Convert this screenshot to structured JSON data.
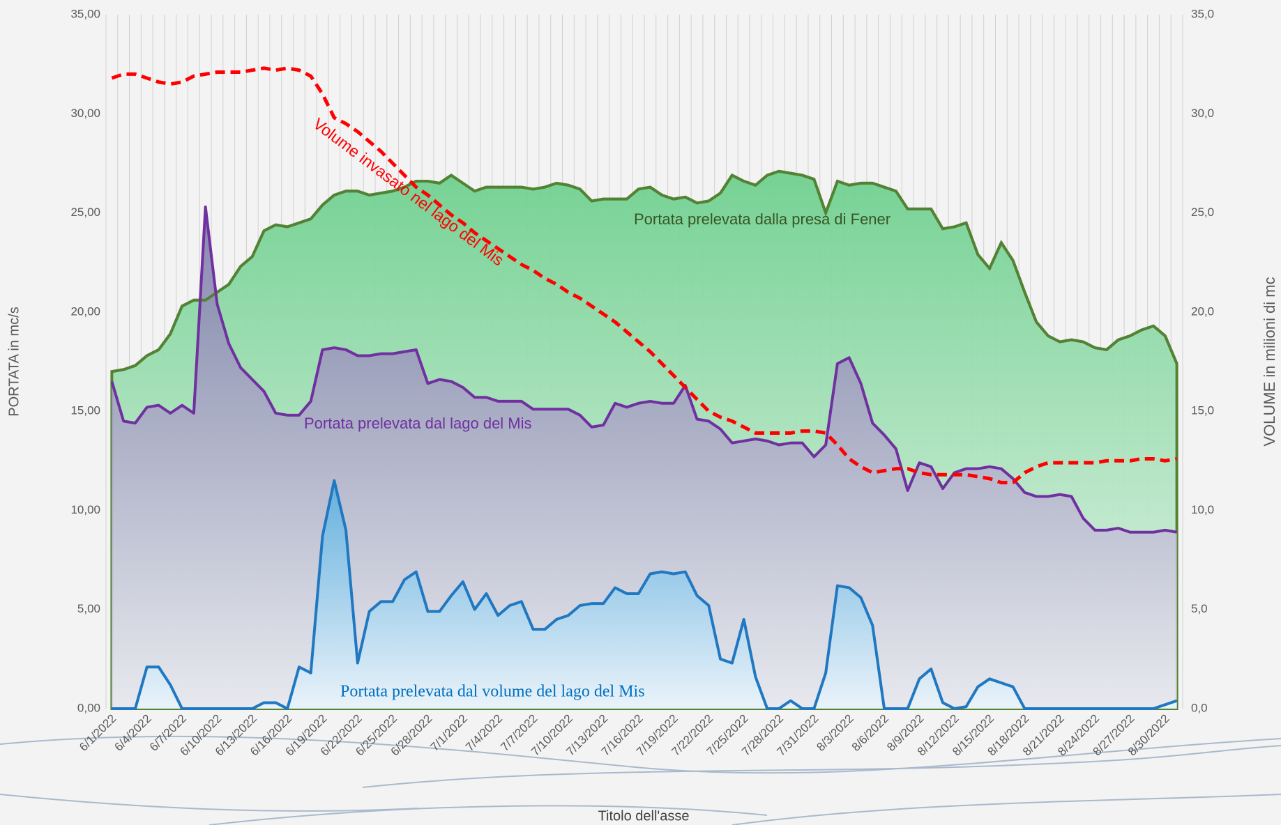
{
  "chart_data": {
    "type": "area",
    "categories": [
      "6/1/2022",
      null,
      null,
      "6/4/2022",
      null,
      null,
      "6/7/2022",
      null,
      null,
      "6/10/2022",
      null,
      null,
      "6/13/2022",
      null,
      null,
      "6/16/2022",
      null,
      null,
      "6/19/2022",
      null,
      null,
      "6/22/2022",
      null,
      null,
      "6/25/2022",
      null,
      null,
      "6/28/2022",
      null,
      null,
      "7/1/2022",
      null,
      null,
      "7/4/2022",
      null,
      null,
      "7/7/2022",
      null,
      null,
      "7/10/2022",
      null,
      null,
      "7/13/2022",
      null,
      null,
      "7/16/2022",
      null,
      null,
      "7/19/2022",
      null,
      null,
      "7/22/2022",
      null,
      null,
      "7/25/2022",
      null,
      null,
      "7/28/2022",
      null,
      null,
      "7/31/2022",
      null,
      null,
      "8/3/2022",
      null,
      null,
      "8/6/2022",
      null,
      null,
      "8/9/2022",
      null,
      null,
      "8/12/2022",
      null,
      null,
      "8/15/2022",
      null,
      null,
      "8/18/2022",
      null,
      null,
      "8/21/2022",
      null,
      null,
      "8/24/2022",
      null,
      null,
      "8/27/2022",
      null,
      null,
      "8/30/2022",
      null
    ],
    "series": [
      {
        "name": "Portata prelevata dalla presa di Fener",
        "color": "#548235",
        "values": [
          17.0,
          17.1,
          17.3,
          17.8,
          18.1,
          18.9,
          20.3,
          20.6,
          20.6,
          21.0,
          21.4,
          22.3,
          22.8,
          24.1,
          24.4,
          24.3,
          24.5,
          24.7,
          25.4,
          25.9,
          26.1,
          26.1,
          25.9,
          26.0,
          26.1,
          26.3,
          26.6,
          26.6,
          26.5,
          26.9,
          26.5,
          26.1,
          26.3,
          26.3,
          26.3,
          26.3,
          26.2,
          26.3,
          26.5,
          26.4,
          26.2,
          25.6,
          25.7,
          25.7,
          25.7,
          26.2,
          26.3,
          25.9,
          25.7,
          25.8,
          25.5,
          25.6,
          26.0,
          26.9,
          26.6,
          26.4,
          26.9,
          27.1,
          27.0,
          26.9,
          26.7,
          25.0,
          26.6,
          26.4,
          26.5,
          26.5,
          26.3,
          26.1,
          25.2,
          25.2,
          25.2,
          24.2,
          24.3,
          24.5,
          22.9,
          22.2,
          23.5,
          22.6,
          21.0,
          19.5,
          18.8,
          18.5,
          18.6,
          18.5,
          18.2,
          18.1,
          18.6,
          18.8,
          19.1,
          19.3,
          18.8,
          17.4
        ]
      },
      {
        "name": "Portata prelevata dal lago del Mis",
        "color": "#7030a0",
        "values": [
          16.5,
          14.5,
          14.4,
          15.2,
          15.3,
          14.9,
          15.3,
          14.9,
          25.3,
          20.4,
          18.4,
          17.2,
          16.6,
          16.0,
          14.9,
          14.8,
          14.8,
          15.5,
          18.1,
          18.2,
          18.1,
          17.8,
          17.8,
          17.9,
          17.9,
          18.0,
          18.1,
          16.4,
          16.6,
          16.5,
          16.2,
          15.7,
          15.7,
          15.5,
          15.5,
          15.5,
          15.1,
          15.1,
          15.1,
          15.1,
          14.8,
          14.2,
          14.3,
          15.4,
          15.2,
          15.4,
          15.5,
          15.4,
          15.4,
          16.3,
          14.6,
          14.5,
          14.1,
          13.4,
          13.5,
          13.6,
          13.5,
          13.3,
          13.4,
          13.4,
          12.7,
          13.3,
          17.4,
          17.7,
          16.4,
          14.4,
          13.8,
          13.1,
          11.0,
          12.4,
          12.2,
          11.1,
          11.9,
          12.1,
          12.1,
          12.2,
          12.1,
          11.6,
          10.9,
          10.7,
          10.7,
          10.8,
          10.7,
          9.6,
          9.0,
          9.0,
          9.1,
          8.9,
          8.9,
          8.9,
          9.0,
          8.9
        ]
      },
      {
        "name": "Portata prelevata dal volume del lago del Mis",
        "color": "#1f78c1",
        "values": [
          0,
          0,
          0,
          2.1,
          2.1,
          1.2,
          0,
          0,
          0,
          0,
          0,
          0,
          0,
          0.3,
          0.3,
          0,
          2.1,
          1.8,
          8.7,
          11.5,
          9.0,
          2.3,
          4.9,
          5.4,
          5.4,
          6.5,
          6.9,
          4.9,
          4.9,
          5.7,
          6.4,
          5.0,
          5.8,
          4.7,
          5.2,
          5.4,
          4.0,
          4.0,
          4.5,
          4.7,
          5.2,
          5.3,
          5.3,
          6.1,
          5.8,
          5.8,
          6.8,
          6.9,
          6.8,
          6.9,
          5.7,
          5.2,
          2.5,
          2.3,
          4.5,
          1.6,
          0,
          0,
          0.4,
          0,
          0,
          1.8,
          6.2,
          6.1,
          5.6,
          4.2,
          0,
          0,
          0,
          1.5,
          2.0,
          0.3,
          0,
          0.1,
          1.1,
          1.5,
          1.3,
          1.1,
          0,
          0,
          0,
          0,
          0,
          0,
          0,
          0,
          0,
          0,
          0,
          0,
          0.2,
          0.4
        ]
      },
      {
        "name": "Volume invasato nel lago del Mis",
        "color": "#ff0000",
        "type": "line",
        "dashed": true,
        "axis": "y2",
        "values": [
          31.8,
          32.0,
          32.0,
          31.8,
          31.6,
          31.5,
          31.6,
          31.9,
          32.0,
          32.1,
          32.1,
          32.1,
          32.2,
          32.3,
          32.2,
          32.3,
          32.2,
          31.9,
          31.0,
          29.8,
          29.5,
          29.1,
          28.6,
          28.1,
          27.5,
          26.9,
          26.3,
          25.9,
          25.4,
          24.9,
          24.5,
          24.0,
          23.6,
          23.2,
          22.8,
          22.4,
          22.1,
          21.7,
          21.4,
          21.0,
          20.7,
          20.3,
          19.9,
          19.5,
          19.0,
          18.5,
          18.0,
          17.4,
          16.8,
          16.2,
          15.6,
          15.0,
          14.7,
          14.5,
          14.2,
          13.9,
          13.9,
          13.9,
          13.9,
          14.0,
          14.0,
          13.9,
          13.3,
          12.6,
          12.2,
          11.9,
          12.0,
          12.1,
          12.1,
          11.9,
          11.8,
          11.8,
          11.8,
          11.8,
          11.7,
          11.6,
          11.4,
          11.4,
          11.9,
          12.2,
          12.4,
          12.4,
          12.4,
          12.4,
          12.4,
          12.5,
          12.5,
          12.5,
          12.6,
          12.6,
          12.5,
          12.6
        ]
      }
    ],
    "ylim": [
      0,
      35
    ],
    "yticks": [
      {
        "value": 0,
        "label": "0,00"
      },
      {
        "value": 5,
        "label": "5,00"
      },
      {
        "value": 10,
        "label": "10,00"
      },
      {
        "value": 15,
        "label": "15,00"
      },
      {
        "value": 20,
        "label": "20,00"
      },
      {
        "value": 25,
        "label": "25,00"
      },
      {
        "value": 30,
        "label": "30,00"
      },
      {
        "value": 35,
        "label": "35,00"
      }
    ],
    "y2lim": [
      0,
      35
    ],
    "y2ticks": [
      {
        "value": 0,
        "label": "0,0"
      },
      {
        "value": 5,
        "label": "5,0"
      },
      {
        "value": 10,
        "label": "10,0"
      },
      {
        "value": 15,
        "label": "15,0"
      },
      {
        "value": 20,
        "label": "20,0"
      },
      {
        "value": 25,
        "label": "25,0"
      },
      {
        "value": 30,
        "label": "30,0"
      },
      {
        "value": 35,
        "label": "35,0"
      }
    ],
    "ylabel": "PORTATA in mc/s",
    "y2label": "VOLUME in milioni di mc",
    "xlabel": "Titolo dell'asse",
    "grid": "x"
  }
}
